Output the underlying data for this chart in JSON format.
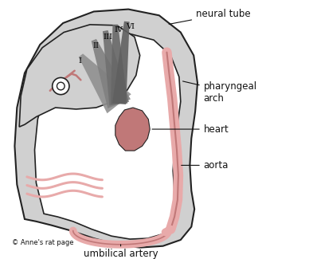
{
  "background_color": "#ffffff",
  "labels": {
    "neural_tube": "neural tube",
    "pharyngeal_arch": "pharyngeal\narch",
    "heart": "heart",
    "aorta": "aorta",
    "umbilical_artery": "umbilical artery",
    "copyright": "© Anne's rat page",
    "roman_numerals": [
      "I",
      "II",
      "III",
      "IV",
      "VI"
    ]
  },
  "colors": {
    "body_fill": "#d0d0d0",
    "body_outline": "#222222",
    "pink_light": "#e8aaaa",
    "pink_dark": "#c07878",
    "arch_colors": [
      "#909090",
      "#808080",
      "#707070",
      "#686868",
      "#606060"
    ],
    "text_color": "#111111"
  }
}
